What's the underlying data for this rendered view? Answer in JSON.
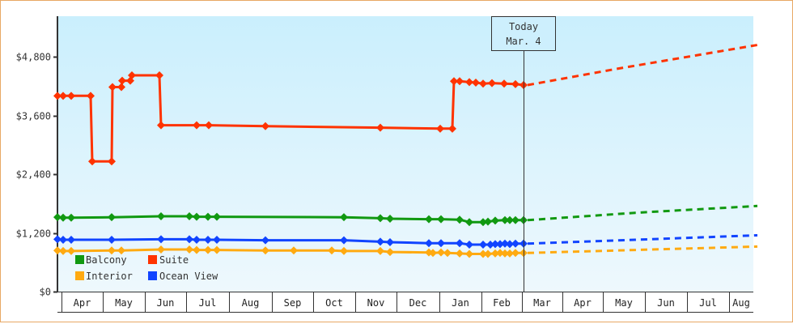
{
  "chart_data": {
    "type": "line",
    "title": "",
    "xlabel": "",
    "ylabel": "",
    "ylim": [
      0,
      5600
    ],
    "y_ticks": [
      "$0",
      "$1,200",
      "$2,400",
      "$3,600",
      "$4,800"
    ],
    "y_tick_values": [
      0,
      1200,
      2400,
      3600,
      4800
    ],
    "x_ticks": [
      "Apr",
      "May",
      "Jun",
      "Jul",
      "Aug",
      "Sep",
      "Oct",
      "Nov",
      "Dec",
      "Jan",
      "Feb",
      "Mar",
      "Apr",
      "May",
      "Jun",
      "Jul",
      "Aug"
    ],
    "grid": false,
    "legend_position": "lower-left inside plot",
    "today_marker": {
      "line1": "Today",
      "line2": "Mar. 4"
    },
    "series": [
      {
        "name": "Suite",
        "color": "#ff3300",
        "historical": [
          [
            71,
            4000
          ],
          [
            78,
            4000
          ],
          [
            88,
            4000
          ],
          [
            112,
            4000
          ],
          [
            114,
            2660
          ],
          [
            138,
            2660
          ],
          [
            139,
            4180
          ],
          [
            150,
            4180
          ],
          [
            151,
            4310
          ],
          [
            161,
            4310
          ],
          [
            163,
            4420
          ],
          [
            197,
            4420
          ],
          [
            199,
            3400
          ],
          [
            243,
            3400
          ],
          [
            258,
            3400
          ],
          [
            328,
            3380
          ],
          [
            470,
            3350
          ],
          [
            544,
            3330
          ],
          [
            559,
            3330
          ],
          [
            561,
            4300
          ],
          [
            568,
            4300
          ],
          [
            580,
            4280
          ],
          [
            588,
            4270
          ],
          [
            597,
            4250
          ],
          [
            608,
            4260
          ],
          [
            623,
            4250
          ],
          [
            637,
            4240
          ],
          [
            647,
            4220
          ]
        ],
        "forecast": [
          [
            647,
            4220
          ],
          [
            760,
            4560
          ],
          [
            931,
            5040
          ]
        ]
      },
      {
        "name": "Balcony",
        "color": "#119911",
        "historical": [
          [
            71,
            1520
          ],
          [
            78,
            1510
          ],
          [
            88,
            1510
          ],
          [
            138,
            1520
          ],
          [
            199,
            1540
          ],
          [
            234,
            1540
          ],
          [
            243,
            1530
          ],
          [
            257,
            1530
          ],
          [
            268,
            1530
          ],
          [
            425,
            1520
          ],
          [
            470,
            1500
          ],
          [
            482,
            1490
          ],
          [
            530,
            1480
          ],
          [
            545,
            1480
          ],
          [
            568,
            1470
          ],
          [
            580,
            1420
          ],
          [
            597,
            1420
          ],
          [
            603,
            1430
          ],
          [
            612,
            1450
          ],
          [
            624,
            1460
          ],
          [
            630,
            1460
          ],
          [
            637,
            1460
          ],
          [
            647,
            1460
          ]
        ],
        "forecast": [
          [
            647,
            1460
          ],
          [
            780,
            1610
          ],
          [
            931,
            1750
          ]
        ]
      },
      {
        "name": "Ocean View",
        "color": "#1144ff",
        "historical": [
          [
            71,
            1070
          ],
          [
            78,
            1060
          ],
          [
            88,
            1060
          ],
          [
            138,
            1060
          ],
          [
            199,
            1070
          ],
          [
            234,
            1070
          ],
          [
            243,
            1060
          ],
          [
            257,
            1060
          ],
          [
            268,
            1060
          ],
          [
            328,
            1050
          ],
          [
            425,
            1050
          ],
          [
            470,
            1020
          ],
          [
            482,
            1010
          ],
          [
            530,
            990
          ],
          [
            545,
            990
          ],
          [
            568,
            990
          ],
          [
            580,
            960
          ],
          [
            597,
            960
          ],
          [
            606,
            960
          ],
          [
            612,
            970
          ],
          [
            618,
            970
          ],
          [
            624,
            980
          ],
          [
            630,
            970
          ],
          [
            637,
            980
          ],
          [
            647,
            980
          ]
        ],
        "forecast": [
          [
            647,
            980
          ],
          [
            780,
            1060
          ],
          [
            931,
            1150
          ]
        ]
      },
      {
        "name": "Interior",
        "color": "#ffaa11",
        "historical": [
          [
            71,
            840
          ],
          [
            78,
            830
          ],
          [
            88,
            830
          ],
          [
            138,
            840
          ],
          [
            150,
            840
          ],
          [
            199,
            860
          ],
          [
            234,
            860
          ],
          [
            243,
            850
          ],
          [
            257,
            850
          ],
          [
            268,
            850
          ],
          [
            328,
            840
          ],
          [
            363,
            840
          ],
          [
            410,
            840
          ],
          [
            425,
            830
          ],
          [
            470,
            830
          ],
          [
            482,
            810
          ],
          [
            530,
            800
          ],
          [
            535,
            790
          ],
          [
            545,
            800
          ],
          [
            553,
            790
          ],
          [
            568,
            780
          ],
          [
            580,
            770
          ],
          [
            597,
            770
          ],
          [
            603,
            770
          ],
          [
            612,
            780
          ],
          [
            618,
            790
          ],
          [
            624,
            780
          ],
          [
            630,
            780
          ],
          [
            637,
            790
          ],
          [
            647,
            790
          ]
        ],
        "forecast": [
          [
            647,
            790
          ],
          [
            780,
            850
          ],
          [
            931,
            920
          ]
        ]
      }
    ]
  },
  "legend": {
    "items": [
      {
        "label": "Balcony",
        "color": "#119911"
      },
      {
        "label": "Suite",
        "color": "#ff3300"
      },
      {
        "label": "Interior",
        "color": "#ffaa11"
      },
      {
        "label": "Ocean View",
        "color": "#1144ff"
      }
    ]
  },
  "today": {
    "line1": "Today",
    "line2": "Mar. 4"
  }
}
